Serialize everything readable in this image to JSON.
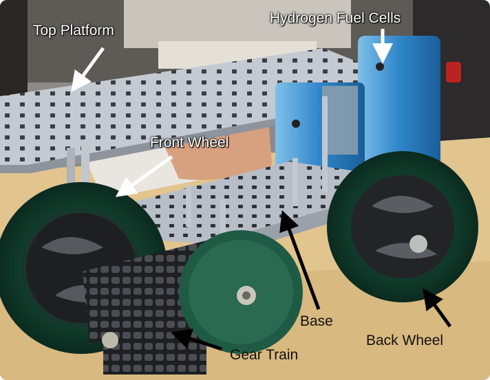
{
  "labels": {
    "top_platform": "Top Platform",
    "fuel_cells": "Hydrogen Fuel Cells",
    "front_wheel": "Front Wheel",
    "base": "Base",
    "back_wheel": "Back Wheel",
    "gear_train": "Gear Train"
  },
  "colors": {
    "light_label": "#ffffff",
    "dark_label": "#111111",
    "light_arrow": "#ffffff",
    "dark_arrow": "#000000",
    "table_wood": "#e3c690",
    "wheel_green": "#143d2c",
    "fuel_cell_blue": "#3d93d3",
    "metal_plate": "#bcc3cc"
  }
}
